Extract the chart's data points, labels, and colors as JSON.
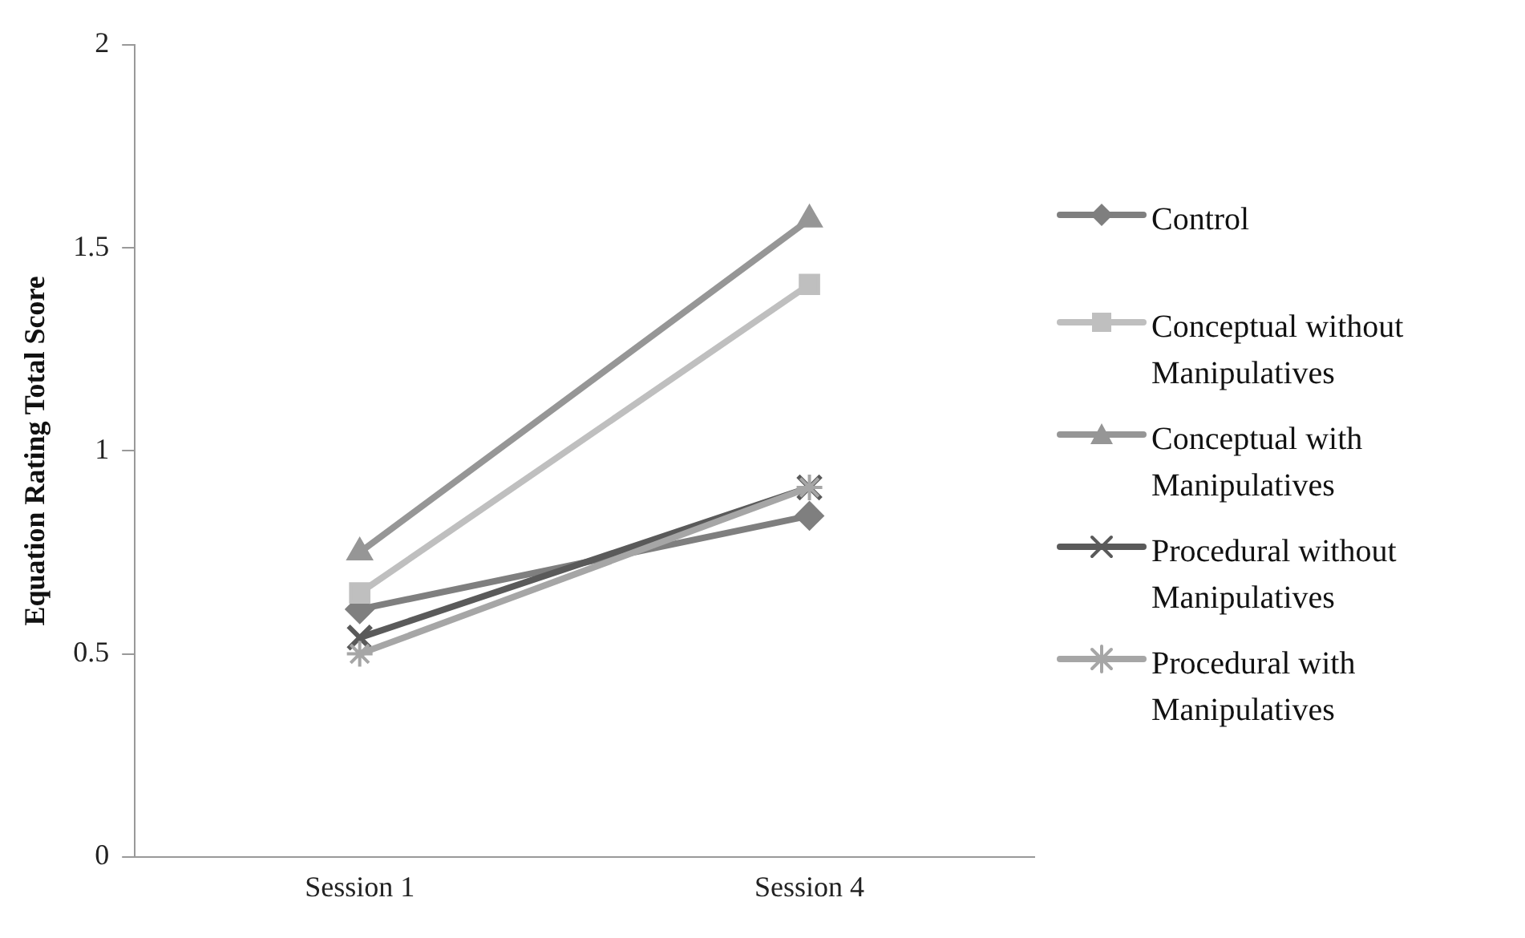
{
  "chart_data": {
    "type": "line",
    "ylabel": "Equation Rating Total Score",
    "categories": [
      "Session 1",
      "Session 4"
    ],
    "ylim": [
      0,
      2
    ],
    "yticks": [
      0,
      0.5,
      1,
      1.5,
      2
    ],
    "grid": false,
    "legend": "right",
    "series": [
      {
        "name": "Control",
        "color": "#7f7f7f",
        "marker": "diamond",
        "values": [
          0.61,
          0.84
        ]
      },
      {
        "name": "Conceptual without Manipulatives",
        "color": "#bfbfbf",
        "marker": "square",
        "values": [
          0.65,
          1.41
        ]
      },
      {
        "name": "Conceptual with Manipulatives",
        "color": "#969696",
        "marker": "triangle",
        "values": [
          0.75,
          1.57
        ]
      },
      {
        "name": "Procedural without Manipulatives",
        "color": "#5a5a5a",
        "marker": "cross",
        "values": [
          0.54,
          0.91
        ]
      },
      {
        "name": "Procedural with Manipulatives",
        "color": "#a6a6a6",
        "marker": "cross",
        "values": [
          0.5,
          0.91
        ]
      }
    ]
  }
}
